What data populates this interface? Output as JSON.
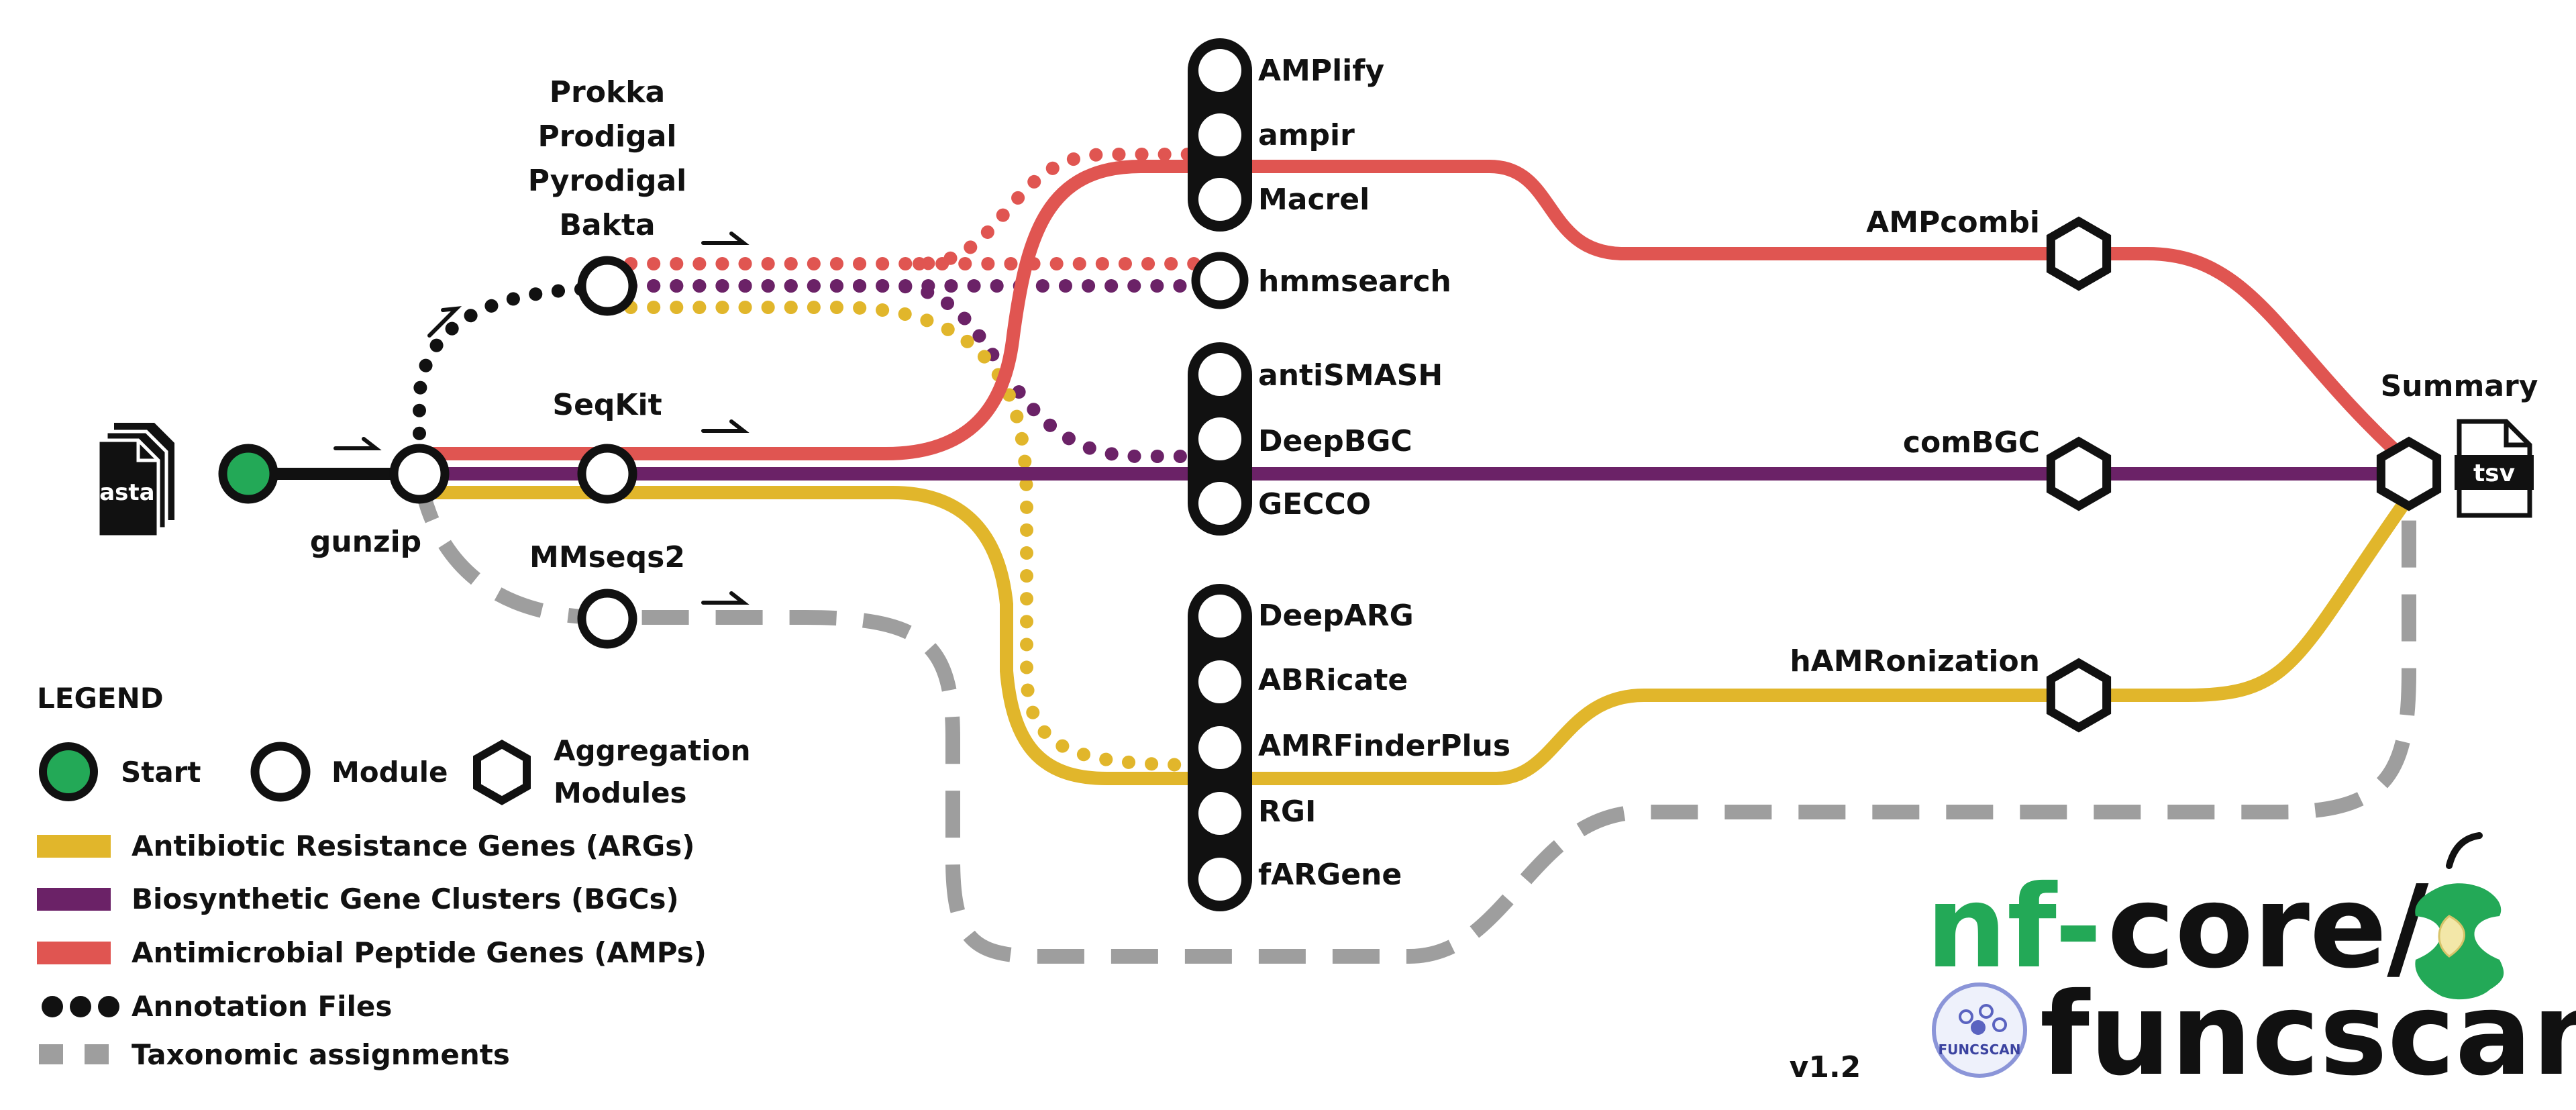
{
  "colors": {
    "args": "#e1b62b",
    "bgcs": "#6b2267",
    "amps": "#e05551",
    "annotation": "#111111",
    "taxonomy": "#9e9e9e",
    "start": "#23a957",
    "nfcore_green": "#23a957",
    "ink": "#111111"
  },
  "input": {
    "file_label": "fasta"
  },
  "preprocessing": {
    "gunzip": "gunzip",
    "seqkit": "SeqKit",
    "mmseqs2": "MMseqs2",
    "annotation_tools": [
      "Prokka",
      "Prodigal",
      "Pyrodigal",
      "Bakta"
    ]
  },
  "amp_tools": [
    "AMPlify",
    "ampir",
    "Macrel"
  ],
  "hmm_tool": "hmmsearch",
  "bgc_tools": [
    "antiSMASH",
    "DeepBGC",
    "GECCO"
  ],
  "arg_tools": [
    "DeepARG",
    "ABRicate",
    "AMRFinderPlus",
    "RGI",
    "fARGene"
  ],
  "aggregation": {
    "amps": "AMPcombi",
    "bgcs": "comBGC",
    "args": "hAMRonization"
  },
  "summary": {
    "label": "Summary",
    "file_label": "tsv"
  },
  "legend": {
    "title": "LEGEND",
    "start": "Start",
    "module": "Module",
    "aggregation_line1": "Aggregation",
    "aggregation_line2": "Modules",
    "args": "Antibiotic Resistance Genes (ARGs)",
    "bgcs": "Biosynthetic Gene Clusters (BGCs)",
    "amps": "Antimicrobial Peptide Genes (AMPs)",
    "annotation": "Annotation Files",
    "taxonomy": "Taxonomic assignments"
  },
  "logo": {
    "nf": "nf-",
    "core": "core/",
    "pipeline": "funcscan",
    "badge": "FUNCSCAN"
  },
  "version": "v1.2"
}
